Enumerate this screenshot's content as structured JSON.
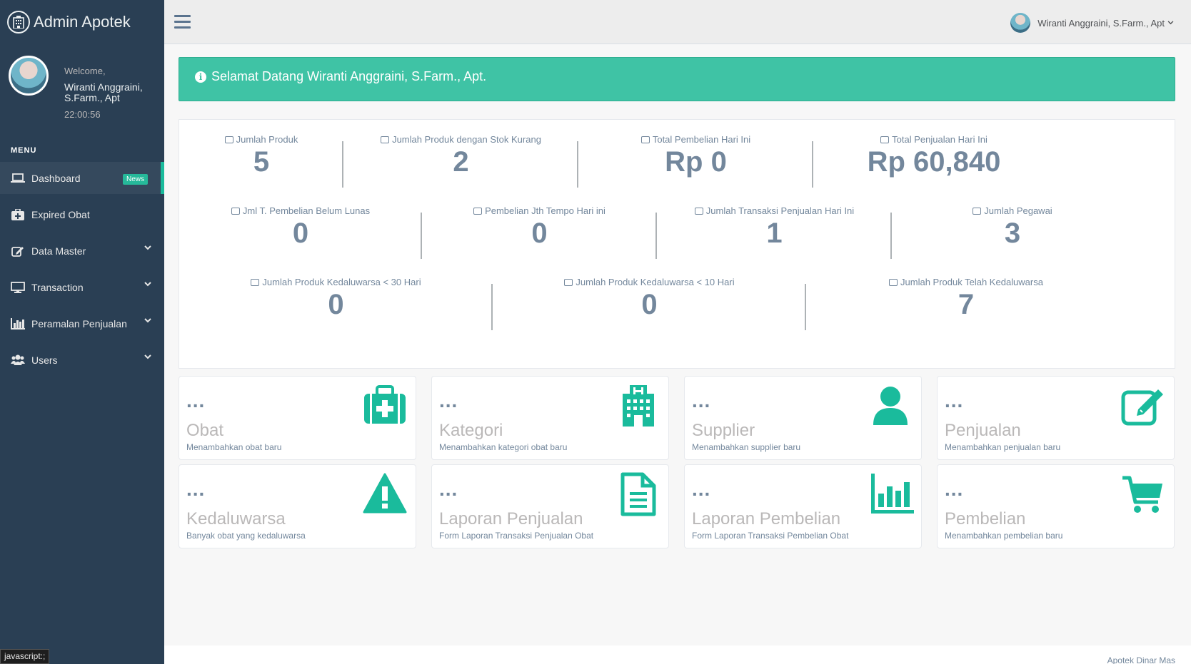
{
  "brand": {
    "title": "Admin Apotek",
    "icon": "hospital-icon"
  },
  "profile": {
    "welcome": "Welcome,",
    "name": "Wiranti Anggraini, S.Farm., Apt",
    "clock": "22:00:56"
  },
  "menu": {
    "heading": "MENU",
    "items": [
      {
        "label": "Dashboard",
        "icon": "laptop-icon",
        "badge": "News",
        "active": true
      },
      {
        "label": "Expired Obat",
        "icon": "medkit-icon"
      },
      {
        "label": "Data Master",
        "icon": "edit-icon",
        "has_submenu": true
      },
      {
        "label": "Transaction",
        "icon": "desktop-icon",
        "has_submenu": true
      },
      {
        "label": "Peramalan Penjualan",
        "icon": "bar-chart-icon",
        "has_submenu": true
      },
      {
        "label": "Users",
        "icon": "users-icon",
        "has_submenu": true
      }
    ]
  },
  "topnav": {
    "user_name": "Wiranti Anggraini, S.Farm., Apt"
  },
  "alert": {
    "message": "Selamat Datang Wiranti Anggraini, S.Farm., Apt."
  },
  "stats": {
    "row1": [
      {
        "label": "Jumlah Produk",
        "value": "5",
        "icon": "medkit-icon"
      },
      {
        "label": "Jumlah Produk dengan Stok Kurang",
        "value": "2",
        "icon": "clipboard-icon"
      },
      {
        "label": "Total Pembelian Hari Ini",
        "value": "Rp 0",
        "icon": "edit-icon"
      },
      {
        "label": "Total Penjualan Hari Ini",
        "value": "Rp 60,840",
        "icon": "edit-icon"
      }
    ],
    "row2": [
      {
        "label": "Jml T. Pembelian Belum Lunas",
        "value": "0",
        "icon": "medkit-icon"
      },
      {
        "label": "Pembelian Jth Tempo Hari ini",
        "value": "0",
        "icon": "clipboard-icon"
      },
      {
        "label": "Jumlah Transaksi Penjualan Hari Ini",
        "value": "1",
        "icon": "edit-icon"
      },
      {
        "label": "Jumlah Pegawai",
        "value": "3",
        "icon": "users-icon"
      }
    ],
    "row3": [
      {
        "label": "Jumlah Produk Kedaluwarsa < 30 Hari",
        "value": "0",
        "icon": "medkit-icon"
      },
      {
        "label": "Jumlah Produk Kedaluwarsa < 10 Hari",
        "value": "0",
        "icon": "medkit-icon"
      },
      {
        "label": "Jumlah Produk Telah Kedaluwarsa",
        "value": "7",
        "icon": "medkit-icon"
      }
    ]
  },
  "tiles": [
    {
      "count": "...",
      "title": "Obat",
      "desc": "Menambahkan obat baru",
      "icon": "medkit-icon"
    },
    {
      "count": "...",
      "title": "Kategori",
      "desc": "Menambahkan kategori obat baru",
      "icon": "hospital-icon"
    },
    {
      "count": "...",
      "title": "Supplier",
      "desc": "Menambahkan supplier baru",
      "icon": "user-icon"
    },
    {
      "count": "...",
      "title": "Penjualan",
      "desc": "Menambahkan penjualan baru",
      "icon": "edit-icon"
    },
    {
      "count": "...",
      "title": "Kedaluwarsa",
      "desc": "Banyak obat yang kedaluwarsa",
      "icon": "warning-icon"
    },
    {
      "count": "...",
      "title": "Laporan Penjualan",
      "desc": "Form Laporan Transaksi Penjualan Obat",
      "icon": "file-text-icon"
    },
    {
      "count": "...",
      "title": "Laporan Pembelian",
      "desc": "Form Laporan Transaksi Pembelian Obat",
      "icon": "bar-chart-icon"
    },
    {
      "count": "...",
      "title": "Pembelian",
      "desc": "Menambahkan pembelian baru",
      "icon": "shopping-cart-icon"
    }
  ],
  "footer": {
    "text": "Apotek Dinar Mas"
  },
  "statusbar": {
    "text": "javascript:;"
  },
  "colors": {
    "sidebar": "#2a3f54",
    "accent": "#1abb9c",
    "alert": "#3fc3a5",
    "text_muted": "#73879c"
  }
}
